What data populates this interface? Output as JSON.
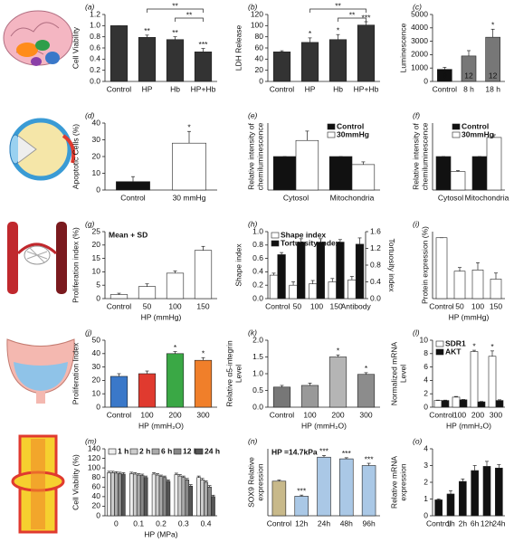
{
  "chart_data": [
    {
      "type": "bar",
      "panel": "(a)",
      "ylabel": [
        "Cell Viability"
      ],
      "categories": [
        "Control",
        "HP",
        "Hb",
        "HP+Hb"
      ],
      "series": [
        {
          "color": "#333333",
          "values": [
            1.0,
            0.79,
            0.75,
            0.53
          ],
          "errors": [
            0,
            0.04,
            0.05,
            0.06
          ],
          "marks": [
            null,
            "**",
            "**",
            "***"
          ]
        }
      ],
      "ylim": [
        0,
        1.2
      ],
      "yticks": [
        {
          "value": 0,
          "label": "0.0"
        },
        0.2,
        0.4,
        0.6,
        0.8,
        {
          "value": 1,
          "label": "1.0"
        },
        1.2
      ],
      "brackets": [
        "**",
        "**"
      ]
    },
    {
      "type": "bar",
      "panel": "(b)",
      "ylabel": [
        "LDH Release"
      ],
      "categories": [
        "Control",
        "HP",
        "Hb",
        "HP+Hb"
      ],
      "series": [
        {
          "color": "#333333",
          "values": [
            53,
            70,
            75,
            101
          ],
          "errors": [
            2,
            8,
            9,
            6
          ],
          "marks": [
            null,
            "*",
            "*",
            "***"
          ]
        }
      ],
      "ylim": [
        0,
        120
      ],
      "yticks": [
        0,
        20,
        40,
        60,
        80,
        100,
        120
      ],
      "brackets": [
        "**",
        "**"
      ]
    },
    {
      "type": "bar",
      "panel": "(c)",
      "ylabel": [
        "Luminescence"
      ],
      "categories": [
        "Control",
        "8 h",
        "18 h"
      ],
      "series": [
        {
          "colors": [
            "#111111",
            "#777777",
            "#777777"
          ],
          "values": [
            900,
            1900,
            3300
          ],
          "errors": [
            150,
            400,
            600
          ],
          "marks": [
            null,
            null,
            "*"
          ],
          "inner_labels": [
            9,
            12,
            12
          ]
        }
      ],
      "ylim": [
        0,
        5000
      ],
      "yticks": [
        0,
        1000,
        2000,
        3000,
        4000,
        5000
      ]
    },
    {
      "type": "bar",
      "panel": "(d)",
      "ylabel": [
        "Apoptotic Cells (%)"
      ],
      "categories": [
        "Control",
        "30 mmHg"
      ],
      "series": [
        {
          "colors": [
            "#111111",
            "#ffffff"
          ],
          "values": [
            5,
            28
          ],
          "errors": [
            3,
            7
          ],
          "marks": [
            null,
            "*"
          ]
        }
      ],
      "ylim": [
        0,
        40
      ],
      "yticks": [
        0,
        10,
        20,
        30,
        40
      ]
    },
    {
      "type": "bar",
      "panel": "(e)",
      "ylabel": [
        "Relative intensity of",
        "chemiluminescence"
      ],
      "categories": [
        "Cytosol",
        "Mitochondria"
      ],
      "series": [
        {
          "name": "Control",
          "color": "#111111",
          "values": [
            1.0,
            1.0
          ],
          "errors": [
            0,
            0
          ]
        },
        {
          "name": "30mmHg",
          "color": "#ffffff",
          "values": [
            1.48,
            0.76
          ],
          "errors": [
            0.28,
            0.08
          ]
        }
      ],
      "ylim": [
        0,
        2
      ],
      "legend": "upper right"
    },
    {
      "type": "bar",
      "panel": "(f)",
      "ylabel": [
        "Relative intensity of",
        "chemiluminescence"
      ],
      "categories": [
        "Cytosol",
        "Mitochondria"
      ],
      "series": [
        {
          "name": "Control",
          "color": "#111111",
          "values": [
            100,
            100
          ],
          "errors": [
            0,
            0
          ]
        },
        {
          "name": "30mmHg",
          "color": "#ffffff",
          "values": [
            55,
            157
          ],
          "errors": [
            3,
            8
          ]
        }
      ],
      "ylim": [
        0,
        200
      ],
      "legend": "upper right"
    },
    {
      "type": "bar",
      "panel": "(g)",
      "ylabel": [
        "Proliferation index (%)"
      ],
      "xlabel": "HP (mmHg)",
      "categories": [
        "Control",
        "50",
        "100",
        "150"
      ],
      "series": [
        {
          "color": "#ffffff",
          "values": [
            1.5,
            4.5,
            9.5,
            18
          ],
          "errors": [
            0.5,
            1,
            0.8,
            1.5
          ]
        }
      ],
      "ylim": [
        0,
        25
      ],
      "yticks": [
        0,
        5,
        10,
        15,
        20,
        25
      ],
      "note": "Mean + SD"
    },
    {
      "type": "bar",
      "panel": "(h)",
      "ylabel": [
        "Shape index"
      ],
      "y2label": "Tortuosity index",
      "categories": [
        "Control",
        "50",
        "100",
        "150",
        "Antibody"
      ],
      "series": [
        {
          "name": "Shape index",
          "color": "#ffffff",
          "values": [
            0.35,
            0.2,
            0.22,
            0.25,
            0.28
          ],
          "errors": [
            0.03,
            0.05,
            0.05,
            0.05,
            0.05
          ]
        },
        {
          "name": "Tortuosity index",
          "color": "#111111",
          "axis": "y2",
          "values": [
            1.05,
            1.35,
            1.35,
            1.35,
            1.3
          ],
          "errors": [
            0.05,
            0.08,
            0.08,
            0.06,
            0.15
          ]
        }
      ],
      "ylim": [
        0,
        1
      ],
      "yticks": [
        {
          "value": 0,
          "label": "0.0"
        },
        0.2,
        0.4,
        0.6,
        0.8,
        {
          "value": 1,
          "label": "1.0"
        }
      ],
      "y2lim": [
        0,
        1.6
      ],
      "y2ticks": [
        {
          "value": 0,
          "label": "0.0"
        },
        0.4,
        0.8,
        1.2,
        1.6
      ],
      "legend": "upper left"
    },
    {
      "type": "bar",
      "panel": "(i)",
      "ylabel": [
        "Protein expression (%)"
      ],
      "xlabel": "HP (mmHg)",
      "categories": [
        "Control",
        "50",
        "100",
        "150"
      ],
      "series": [
        {
          "color": "#ffffff",
          "values": [
            100,
            45,
            47,
            32
          ],
          "errors": [
            0,
            6,
            12,
            10
          ]
        }
      ],
      "ylim": [
        0,
        110
      ]
    },
    {
      "type": "bar",
      "panel": "(j)",
      "ylabel": [
        "Proliferation Index"
      ],
      "xlabel": "HP (mmH₂O)",
      "categories": [
        "Control",
        "100",
        "200",
        "300"
      ],
      "series": [
        {
          "colors": [
            "#3a78c9",
            "#e03a2f",
            "#3aa845",
            "#f07f2a"
          ],
          "values": [
            23,
            25,
            40,
            35
          ],
          "errors": [
            2,
            2,
            1.5,
            2
          ],
          "marks": [
            null,
            null,
            "*",
            "*"
          ]
        }
      ],
      "ylim": [
        0,
        50
      ],
      "yticks": [
        0,
        10,
        20,
        30,
        40,
        50
      ]
    },
    {
      "type": "bar",
      "panel": "(k)",
      "ylabel": [
        "Relative α5-integrin",
        "Level"
      ],
      "xlabel": "HP (mmH₂O)",
      "categories": [
        "Control",
        "100",
        "200",
        "300"
      ],
      "series": [
        {
          "colors": [
            "#777777",
            "#999999",
            "#b5b5b5",
            "#8c8c8c"
          ],
          "values": [
            0.6,
            0.65,
            1.5,
            0.98
          ],
          "errors": [
            0.05,
            0.07,
            0.06,
            0.05
          ],
          "marks": [
            null,
            null,
            "*",
            "*"
          ]
        }
      ],
      "ylim": [
        0,
        2
      ],
      "yticks": [
        {
          "value": 0,
          "label": "0.0"
        },
        0.5,
        {
          "value": 1,
          "label": "1.0"
        },
        1.5,
        {
          "value": 2,
          "label": "2.0"
        }
      ]
    },
    {
      "type": "bar",
      "panel": "(l)",
      "ylabel": [
        "Normalized mRNA",
        "Level"
      ],
      "xlabel": "HP (mmH₂O)",
      "categories": [
        "Control",
        "100",
        "200",
        "300"
      ],
      "series": [
        {
          "name": "SDR1",
          "color": "#ffffff",
          "values": [
            1,
            1.5,
            8.3,
            7.6
          ],
          "errors": [
            0.05,
            0.1,
            0.2,
            0.8
          ],
          "marks": [
            null,
            null,
            "*",
            "*"
          ]
        },
        {
          "name": "AKT",
          "color": "#111111",
          "values": [
            1,
            1.1,
            0.8,
            1.0
          ],
          "errors": [
            0.05,
            0.05,
            0.05,
            0.1
          ]
        }
      ],
      "ylim": [
        0,
        10
      ],
      "yticks": [
        0,
        2,
        4,
        6,
        8,
        10
      ],
      "legend": "upper left"
    },
    {
      "type": "bar",
      "panel": "(m)",
      "ylabel": [
        "Cell Viability (%)"
      ],
      "xlabel": "HP (MPa)",
      "categories": [
        "0",
        "0.1",
        "0.2",
        "0.3",
        "0.4"
      ],
      "series": [
        {
          "name": "1 h",
          "color": "#eeeeee",
          "values": [
            90,
            88,
            87,
            86,
            80
          ],
          "errors": [
            3,
            3,
            3,
            3,
            3
          ]
        },
        {
          "name": "2 h",
          "color": "#cccccc",
          "values": [
            90,
            87,
            85,
            83,
            75
          ],
          "errors": [
            3,
            3,
            3,
            3,
            3
          ]
        },
        {
          "name": "6 h",
          "color": "#aaaaaa",
          "values": [
            89,
            85,
            82,
            80,
            70
          ],
          "errors": [
            3,
            3,
            3,
            3,
            3
          ]
        },
        {
          "name": "12 h",
          "color": "#888888",
          "values": [
            88,
            84,
            80,
            75,
            60
          ],
          "errors": [
            3,
            3,
            3,
            3,
            3
          ]
        },
        {
          "name": "24 h",
          "color": "#555555",
          "values": [
            87,
            80,
            72,
            62,
            40
          ],
          "errors": [
            3,
            3,
            3,
            3,
            3
          ]
        }
      ],
      "ylim": [
        0,
        140
      ],
      "yticks": [
        0,
        20,
        40,
        60,
        80,
        100,
        120,
        140
      ],
      "legend": "upper center"
    },
    {
      "type": "bar",
      "panel": "(n)",
      "ylabel": [
        "SOX9 Relative",
        "expression"
      ],
      "categories": [
        "Control",
        "12h",
        "24h",
        "48h",
        "96h"
      ],
      "series": [
        {
          "colors": [
            "#c8b98a",
            "#aac8e6",
            "#aac8e6",
            "#aac8e6",
            "#aac8e6"
          ],
          "values": [
            0.62,
            0.35,
            1.05,
            1.02,
            0.9
          ],
          "errors": [
            0.02,
            0.02,
            0.03,
            0.02,
            0.04
          ],
          "marks": [
            null,
            "***",
            "***",
            "***",
            "***"
          ]
        }
      ],
      "ylim": [
        0,
        1.2
      ],
      "note": "HP =14.7kPa"
    },
    {
      "type": "bar",
      "panel": "(o)",
      "ylabel": [
        "Relative mRNA",
        "expression"
      ],
      "categories": [
        "Control",
        "1h",
        "2h",
        "6h",
        "12h",
        "24h"
      ],
      "series": [
        {
          "color": "#111111",
          "values": [
            0.95,
            1.3,
            2.05,
            2.7,
            2.95,
            2.85
          ],
          "errors": [
            0.05,
            0.2,
            0.15,
            0.3,
            0.3,
            0.2
          ]
        }
      ],
      "ylim": [
        0,
        4
      ],
      "yticks": [
        0,
        1,
        2,
        3,
        4
      ]
    }
  ]
}
